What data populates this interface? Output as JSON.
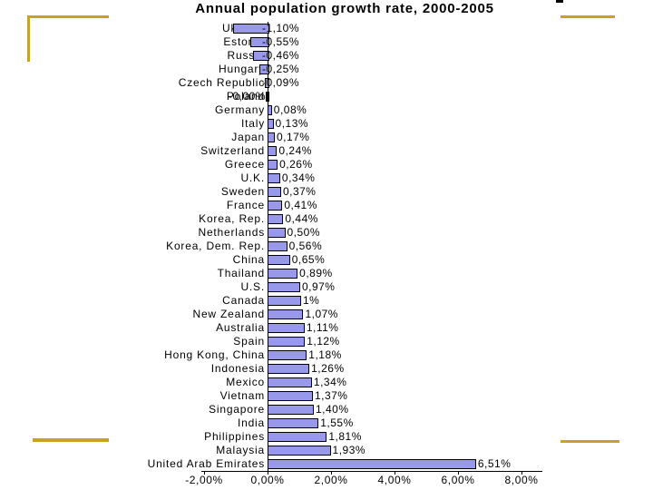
{
  "slide": {
    "accent_color": "#C7A227",
    "background": "#FFFFFF"
  },
  "chart_data": {
    "type": "bar",
    "orientation": "horizontal",
    "title": "Annual population growth rate, 2000-2005",
    "bar_color": "#9999EC",
    "bar_border_color": "#000000",
    "grid": false,
    "legend": false,
    "axis": {
      "min": -2,
      "max": 8,
      "unit": "%",
      "tick_values": [
        -2,
        0,
        2,
        4,
        6,
        8
      ],
      "tick_labels": [
        "-2,00%",
        "0,00%",
        "2,00%",
        "4,00%",
        "6,00%",
        "8,00%"
      ]
    },
    "rows": [
      {
        "category": "Ukraine",
        "value": -1.1,
        "label": "-1,10%"
      },
      {
        "category": "Estonia",
        "value": -0.55,
        "label": "-0,55%"
      },
      {
        "category": "Russia",
        "value": -0.46,
        "label": "-0,46%"
      },
      {
        "category": "Hungary",
        "value": -0.25,
        "label": "-0,25%"
      },
      {
        "category": "Czech Republic",
        "value": -0.09,
        "label": "-0,09%"
      },
      {
        "category": "Poland",
        "value": 0,
        "label": "-0,00%"
      },
      {
        "category": "Germany",
        "value": 0.08,
        "label": "0,08%"
      },
      {
        "category": "Italy",
        "value": 0.13,
        "label": "0,13%"
      },
      {
        "category": "Japan",
        "value": 0.17,
        "label": "0,17%"
      },
      {
        "category": "Switzerland",
        "value": 0.24,
        "label": "0,24%"
      },
      {
        "category": "Greece",
        "value": 0.26,
        "label": "0,26%"
      },
      {
        "category": "U.K.",
        "value": 0.34,
        "label": "0,34%"
      },
      {
        "category": "Sweden",
        "value": 0.37,
        "label": "0,37%"
      },
      {
        "category": "France",
        "value": 0.41,
        "label": "0,41%"
      },
      {
        "category": "Korea, Rep.",
        "value": 0.44,
        "label": "0,44%"
      },
      {
        "category": "Netherlands",
        "value": 0.5,
        "label": "0,50%"
      },
      {
        "category": "Korea, Dem. Rep.",
        "value": 0.56,
        "label": "0,56%"
      },
      {
        "category": "China",
        "value": 0.65,
        "label": "0,65%"
      },
      {
        "category": "Thailand",
        "value": 0.89,
        "label": "0,89%"
      },
      {
        "category": "U.S.",
        "value": 0.97,
        "label": "0,97%"
      },
      {
        "category": "Canada",
        "value": 1.0,
        "label": "1%"
      },
      {
        "category": "New Zealand",
        "value": 1.07,
        "label": "1,07%"
      },
      {
        "category": "Australia",
        "value": 1.11,
        "label": "1,11%"
      },
      {
        "category": "Spain",
        "value": 1.12,
        "label": "1,12%"
      },
      {
        "category": "Hong Kong, China",
        "value": 1.18,
        "label": "1,18%"
      },
      {
        "category": "Indonesia",
        "value": 1.26,
        "label": "1,26%"
      },
      {
        "category": "Mexico",
        "value": 1.34,
        "label": "1,34%"
      },
      {
        "category": "Vietnam",
        "value": 1.37,
        "label": "1,37%"
      },
      {
        "category": "Singapore",
        "value": 1.4,
        "label": "1,40%"
      },
      {
        "category": "India",
        "value": 1.55,
        "label": "1,55%"
      },
      {
        "category": "Philippines",
        "value": 1.81,
        "label": "1,81%"
      },
      {
        "category": "Malaysia",
        "value": 1.93,
        "label": "1,93%"
      },
      {
        "category": "United Arab Emirates",
        "value": 6.51,
        "label": "6,51%"
      }
    ]
  }
}
